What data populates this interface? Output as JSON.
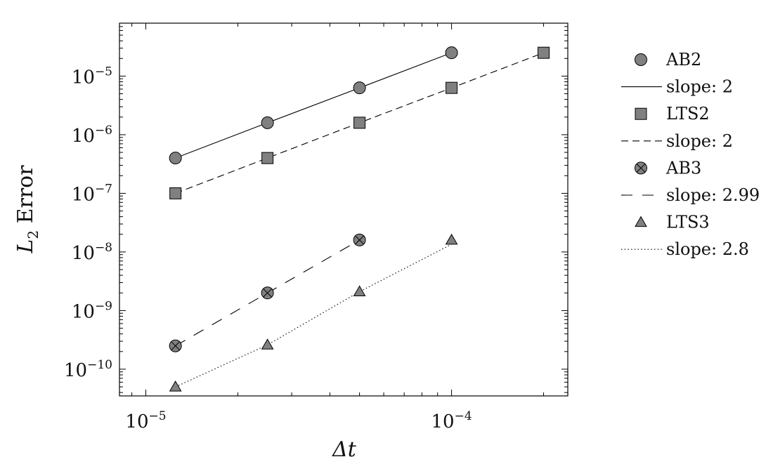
{
  "chart_data": {
    "type": "scatter",
    "xscale": "log",
    "yscale": "log",
    "xlabel": "Δt",
    "ylabel": "L2 Error",
    "xlim": [
      8.2e-06,
      0.00024
    ],
    "ylim": [
      3.5e-11,
      8e-05
    ],
    "xticks": [
      {
        "base": "10",
        "exp": "−5",
        "value": 1e-05
      },
      {
        "base": "10",
        "exp": "−4",
        "value": 0.0001
      }
    ],
    "yticks": [
      {
        "base": "10",
        "exp": "−10",
        "value": 1e-10
      },
      {
        "base": "10",
        "exp": "−9",
        "value": 1e-09
      },
      {
        "base": "10",
        "exp": "−8",
        "value": 1e-08
      },
      {
        "base": "10",
        "exp": "−7",
        "value": 1e-07
      },
      {
        "base": "10",
        "exp": "−6",
        "value": 1e-06
      },
      {
        "base": "10",
        "exp": "−5",
        "value": 1e-05
      }
    ],
    "legend_position": "outside-right",
    "series": [
      {
        "name": "AB2",
        "kind": "markers",
        "marker": "circle",
        "x": [
          1.25e-05,
          2.5e-05,
          5e-05,
          0.0001
        ],
        "y": [
          4e-07,
          1.6e-06,
          6.3e-06,
          2.5e-05
        ]
      },
      {
        "name": "slope: 2",
        "kind": "line",
        "dash": "solid",
        "x": [
          1.25e-05,
          2.5e-05,
          5e-05,
          0.0001
        ],
        "y": [
          4e-07,
          1.6e-06,
          6.3e-06,
          2.5e-05
        ]
      },
      {
        "name": "LTS2",
        "kind": "markers",
        "marker": "square",
        "x": [
          1.25e-05,
          2.5e-05,
          5e-05,
          0.0001,
          0.0002
        ],
        "y": [
          1e-07,
          4e-07,
          1.6e-06,
          6.3e-06,
          2.5e-05
        ]
      },
      {
        "name": "slope: 2",
        "kind": "line",
        "dash": "dashed",
        "x": [
          1.25e-05,
          2.5e-05,
          5e-05,
          0.0001,
          0.0002
        ],
        "y": [
          1e-07,
          4e-07,
          1.6e-06,
          6.3e-06,
          2.5e-05
        ]
      },
      {
        "name": "AB3",
        "kind": "markers",
        "marker": "otimes",
        "x": [
          1.25e-05,
          2.5e-05,
          5e-05
        ],
        "y": [
          2.5e-10,
          2e-09,
          1.6e-08
        ]
      },
      {
        "name": "slope: 2.99",
        "kind": "line",
        "dash": "loosely-dashed",
        "x": [
          1.25e-05,
          2.5e-05,
          5e-05
        ],
        "y": [
          2.5e-10,
          2e-09,
          1.6e-08
        ]
      },
      {
        "name": "LTS3",
        "kind": "markers",
        "marker": "triangle",
        "x": [
          1.25e-05,
          2.5e-05,
          5e-05,
          0.0001
        ],
        "y": [
          5e-11,
          2.6e-10,
          2.1e-09,
          1.6e-08
        ]
      },
      {
        "name": "slope: 2.8",
        "kind": "line",
        "dash": "dotted",
        "x": [
          1.25e-05,
          2.5e-05,
          5e-05,
          0.0001
        ],
        "y": [
          5e-11,
          2.6e-10,
          2.1e-09,
          1.35e-08
        ]
      }
    ],
    "colors": {
      "marker_fill": "#808080",
      "stroke": "#000000"
    }
  }
}
